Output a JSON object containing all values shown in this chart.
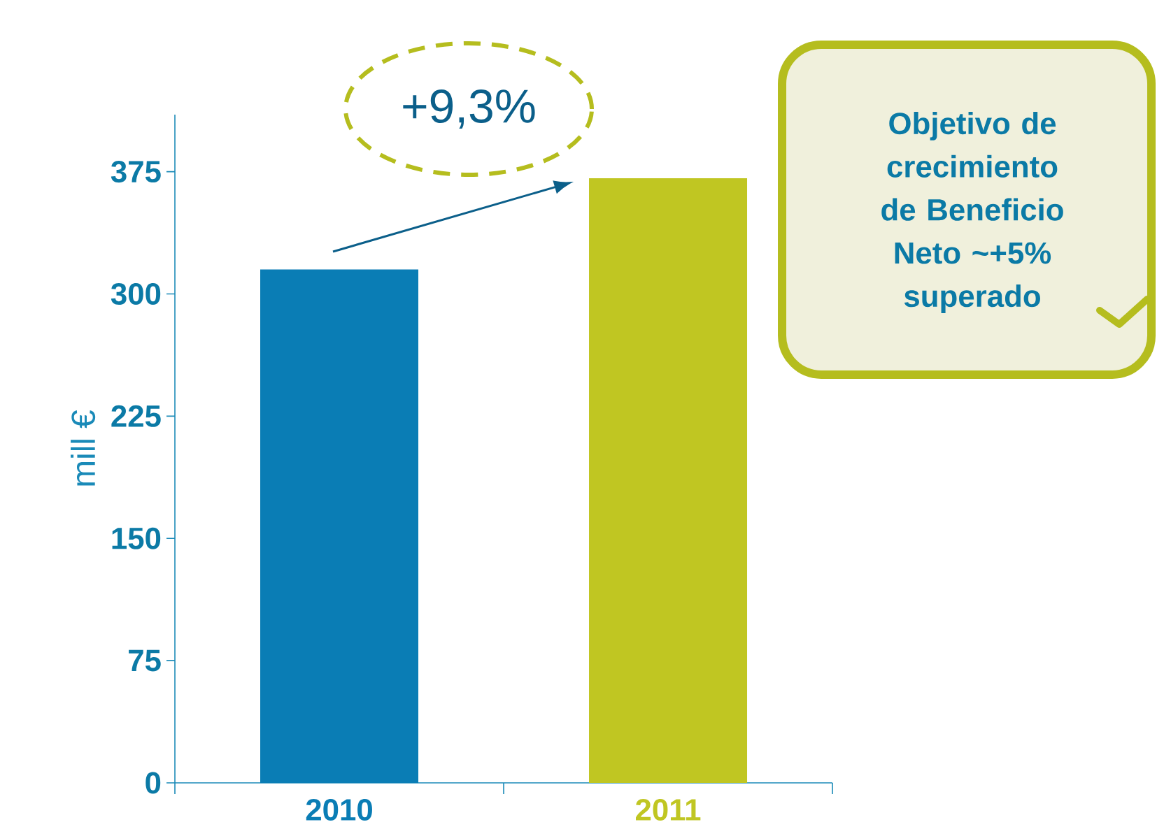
{
  "chart_data": {
    "type": "bar",
    "categories": [
      "2010",
      "2011"
    ],
    "values": [
      315,
      371
    ],
    "colors": [
      "#0a7db5",
      "#c0c622"
    ],
    "ylim": [
      0,
      410
    ],
    "yticks": [
      0,
      75,
      150,
      225,
      300,
      375
    ],
    "ylabel": "mill €",
    "annotations": [
      "+9,3%",
      "Objetivo de crecimiento de Beneficio Neto ~+5% superado"
    ]
  }
}
